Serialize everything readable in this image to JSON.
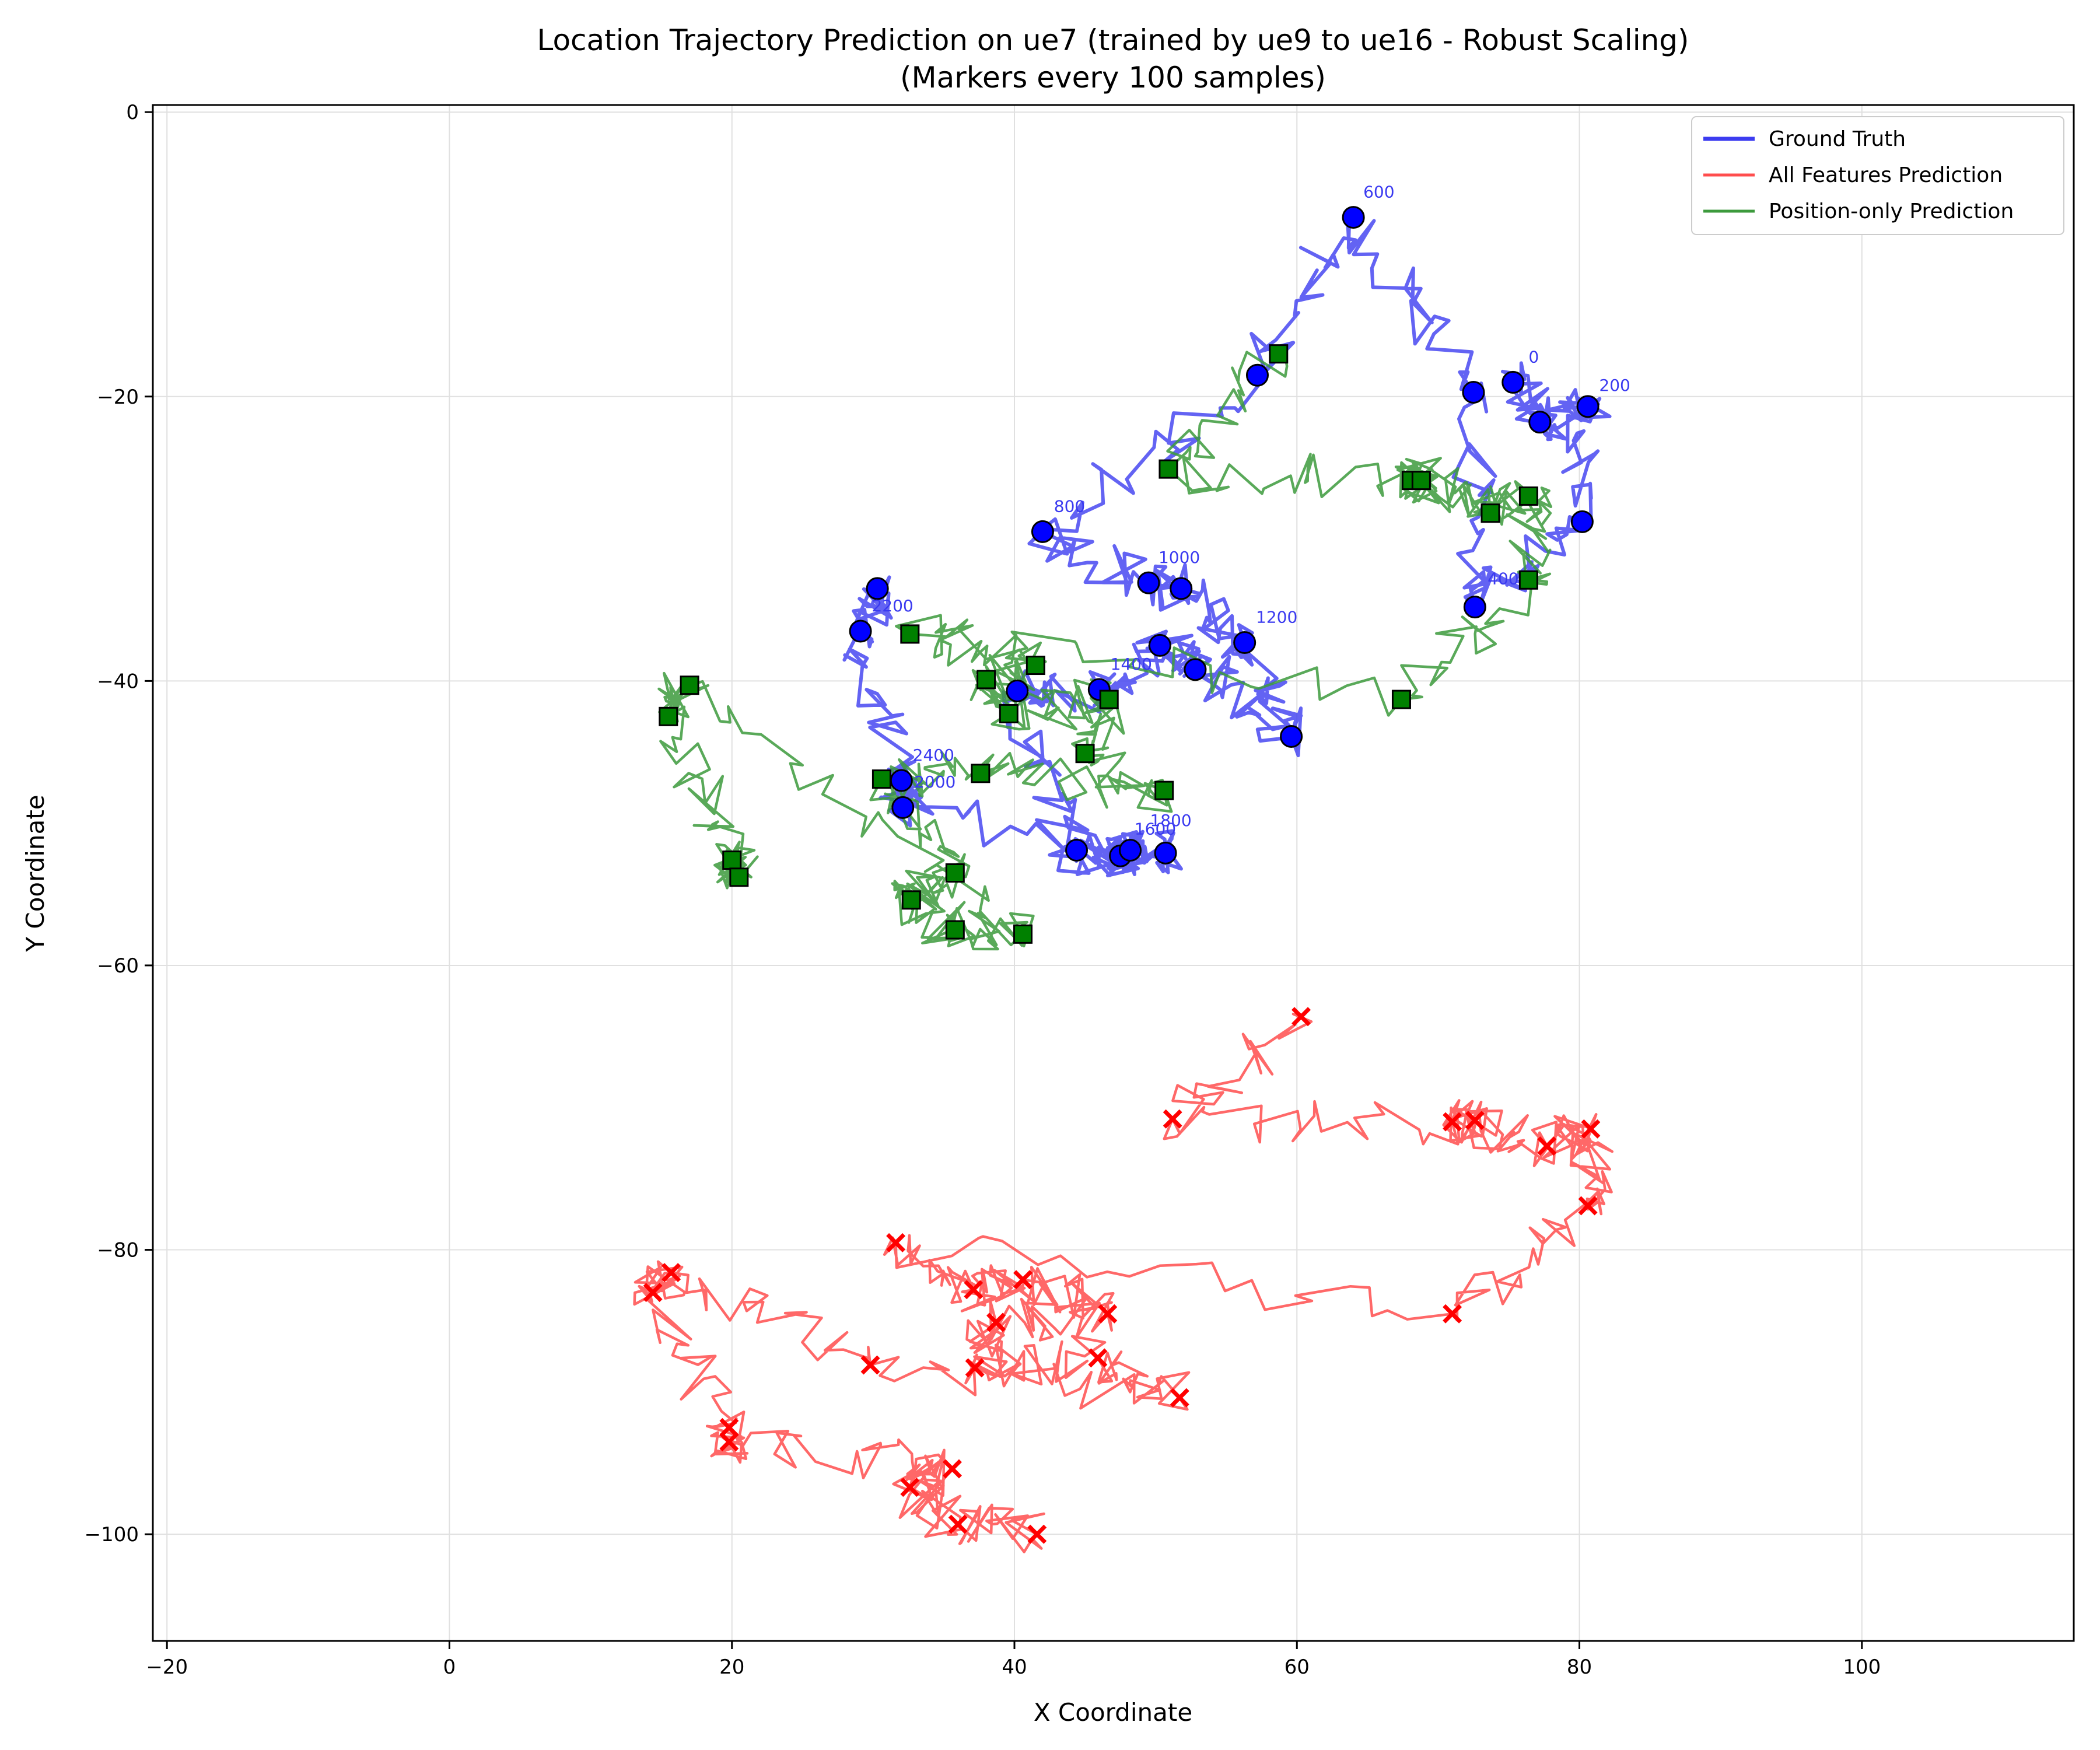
{
  "chart_data": {
    "type": "line",
    "title": "Location Trajectory Prediction on ue7 (trained by ue9 to ue16 - Robust Scaling)",
    "subtitle": "(Markers every 100 samples)",
    "xlabel": "X Coordinate",
    "ylabel": "Y Coordinate",
    "xlim": [
      -21,
      115
    ],
    "ylim": [
      -107.5,
      0.5
    ],
    "xticks": [
      -20,
      0,
      20,
      40,
      60,
      80,
      100
    ],
    "yticks": [
      0,
      -20,
      -40,
      -60,
      -80,
      -100
    ],
    "xtick_labels": [
      "−20",
      "0",
      "20",
      "40",
      "60",
      "80",
      "100"
    ],
    "ytick_labels": [
      "0",
      "−20",
      "−40",
      "−60",
      "−80",
      "−100"
    ],
    "grid": true,
    "legend_position": "top-right",
    "colors": {
      "ground_truth": "#3c3cf0",
      "all_features": "#ff4d4d",
      "position_only": "#3c9a3c",
      "gt_marker": "#0000ff",
      "pos_marker": "#008000",
      "all_marker": "#ff0000"
    },
    "series": [
      {
        "name": "Ground Truth",
        "key": "ground_truth",
        "markers": [
          [
            75.3,
            -19.0
          ],
          [
            77.2,
            -21.8
          ],
          [
            80.6,
            -20.7
          ],
          [
            80.2,
            -28.8
          ],
          [
            72.6,
            -34.8
          ],
          [
            72.5,
            -19.7
          ],
          [
            64.0,
            -7.4
          ],
          [
            57.2,
            -18.5
          ],
          [
            42.0,
            -29.5
          ],
          [
            49.5,
            -33.1
          ],
          [
            51.8,
            -33.5
          ],
          [
            56.3,
            -37.3
          ],
          [
            59.6,
            -43.9
          ],
          [
            52.8,
            -39.2
          ],
          [
            50.3,
            -37.5
          ],
          [
            46.0,
            -40.6
          ],
          [
            40.2,
            -40.7
          ],
          [
            44.4,
            -51.9
          ],
          [
            47.5,
            -52.3
          ],
          [
            48.2,
            -51.9
          ],
          [
            50.7,
            -52.1
          ],
          [
            32.1,
            -48.9
          ],
          [
            32.0,
            -47.0
          ],
          [
            29.1,
            -36.5
          ],
          [
            30.3,
            -33.5
          ]
        ],
        "marker_labels": [
          {
            "text": "0",
            "x": 76.4,
            "y": -17.6
          },
          {
            "text": "200",
            "x": 81.4,
            "y": -19.6
          },
          {
            "text": "400",
            "x": 73.5,
            "y": -33.2
          },
          {
            "text": "600",
            "x": 64.7,
            "y": -6.0
          },
          {
            "text": "800",
            "x": 42.8,
            "y": -28.1
          },
          {
            "text": "1000",
            "x": 50.2,
            "y": -31.7
          },
          {
            "text": "1200",
            "x": 57.1,
            "y": -35.9
          },
          {
            "text": "1400",
            "x": 46.8,
            "y": -39.2
          },
          {
            "text": "1600",
            "x": 48.5,
            "y": -50.8
          },
          {
            "text": "1800",
            "x": 49.6,
            "y": -50.2
          },
          {
            "text": "2000",
            "x": 32.9,
            "y": -47.5
          },
          {
            "text": "2200",
            "x": 29.9,
            "y": -35.1
          },
          {
            "text": "2400",
            "x": 32.8,
            "y": -45.6
          }
        ]
      },
      {
        "name": "All Features Prediction",
        "key": "all_features",
        "markers": [
          [
            60.3,
            -63.6
          ],
          [
            51.2,
            -70.8
          ],
          [
            71.0,
            -71.0
          ],
          [
            72.6,
            -70.9
          ],
          [
            77.7,
            -72.7
          ],
          [
            80.8,
            -71.5
          ],
          [
            80.6,
            -76.9
          ],
          [
            71.0,
            -84.5
          ],
          [
            31.6,
            -79.5
          ],
          [
            37.1,
            -82.8
          ],
          [
            40.6,
            -82.1
          ],
          [
            46.6,
            -84.5
          ],
          [
            38.7,
            -85.1
          ],
          [
            37.2,
            -88.3
          ],
          [
            45.9,
            -87.6
          ],
          [
            51.7,
            -90.4
          ],
          [
            29.8,
            -88.1
          ],
          [
            15.7,
            -81.6
          ],
          [
            14.4,
            -83.0
          ],
          [
            19.8,
            -92.5
          ],
          [
            19.8,
            -93.5
          ],
          [
            35.6,
            -95.4
          ],
          [
            32.6,
            -96.7
          ],
          [
            36.0,
            -99.3
          ],
          [
            41.6,
            -100.0
          ]
        ]
      },
      {
        "name": "Position-only Prediction",
        "key": "position_only",
        "markers": [
          [
            58.7,
            -17.0
          ],
          [
            50.9,
            -25.1
          ],
          [
            68.1,
            -25.9
          ],
          [
            68.8,
            -25.9
          ],
          [
            73.7,
            -28.2
          ],
          [
            76.4,
            -27.0
          ],
          [
            76.4,
            -32.9
          ],
          [
            67.4,
            -41.3
          ],
          [
            32.6,
            -36.7
          ],
          [
            41.5,
            -38.9
          ],
          [
            38.0,
            -39.9
          ],
          [
            39.6,
            -42.3
          ],
          [
            46.7,
            -41.3
          ],
          [
            45.0,
            -45.1
          ],
          [
            50.6,
            -47.7
          ],
          [
            37.6,
            -46.5
          ],
          [
            30.6,
            -46.9
          ],
          [
            35.8,
            -53.5
          ],
          [
            32.7,
            -55.4
          ],
          [
            35.8,
            -57.5
          ],
          [
            40.6,
            -57.8
          ],
          [
            17.0,
            -40.3
          ],
          [
            15.5,
            -42.5
          ],
          [
            20.0,
            -52.6
          ],
          [
            20.5,
            -53.8
          ]
        ]
      }
    ]
  }
}
